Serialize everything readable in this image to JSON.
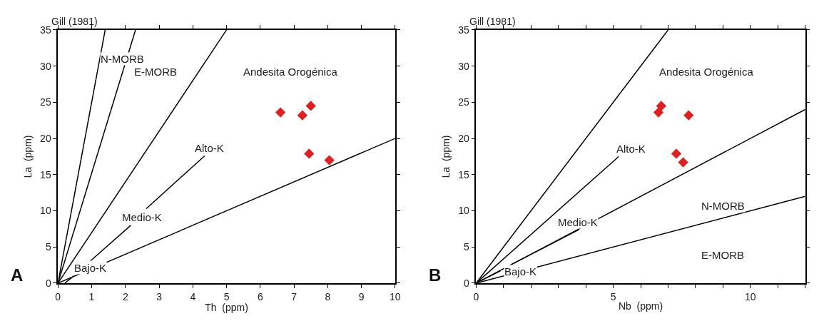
{
  "chart_data": [
    {
      "type": "scatter",
      "xlabel": "Th  (ppm)",
      "ylabel": "La  (ppm)",
      "xlim": [
        0,
        10
      ],
      "ylim": [
        0,
        35
      ],
      "xticks": [
        0,
        1,
        2,
        3,
        4,
        5,
        6,
        7,
        8,
        9,
        10
      ],
      "yticks": [
        0,
        5,
        10,
        15,
        20,
        25,
        30,
        35
      ],
      "annotations": [
        "Gill (1981)",
        "A",
        "N-MORB",
        "E-MORB",
        "Andesita Orogénica",
        "Alto-K",
        "Medio-K",
        "Bajo-K"
      ],
      "series": [
        {
          "type": "line",
          "color": "#000000",
          "x": [
            0,
            1.4
          ],
          "values": [
            0,
            35
          ]
        },
        {
          "type": "line",
          "color": "#000000",
          "x": [
            0,
            2.3
          ],
          "values": [
            0,
            35
          ]
        },
        {
          "type": "line",
          "color": "#000000",
          "x": [
            0,
            5
          ],
          "values": [
            0,
            35
          ]
        },
        {
          "type": "line",
          "color": "#000000",
          "x": [
            0,
            10
          ],
          "values": [
            0,
            20
          ]
        },
        {
          "type": "line",
          "color": "#000000",
          "x": [
            2.62,
            4.35
          ],
          "values": [
            10.3,
            17.6
          ]
        },
        {
          "type": "line",
          "color": "#000000",
          "x": [
            0.97,
            2.16
          ],
          "values": [
            3.1,
            8.0
          ]
        },
        {
          "type": "line",
          "color": "#000000",
          "x": [
            0.2,
            0.47
          ],
          "values": [
            0,
            1.0
          ]
        },
        {
          "color": "#e02020",
          "marker": "diamond",
          "x": [
            6.6,
            7.25,
            7.5,
            7.45,
            8.05
          ],
          "values": [
            23.6,
            23.2,
            24.5,
            17.9,
            17.0
          ]
        }
      ]
    },
    {
      "type": "scatter",
      "xlabel": "Nb  (ppm)",
      "ylabel": "La  (ppm)",
      "xlim": [
        0,
        12
      ],
      "ylim": [
        0,
        35
      ],
      "xticks": [
        0,
        {
          "value": 1,
          "label": null
        },
        {
          "value": 2,
          "label": null
        },
        {
          "value": 3,
          "label": null
        },
        {
          "value": 4,
          "label": null
        },
        5,
        {
          "value": 6,
          "label": null
        },
        {
          "value": 7,
          "label": null
        },
        {
          "value": 8,
          "label": null
        },
        {
          "value": 9,
          "label": null
        },
        10,
        {
          "value": 11,
          "label": null
        },
        {
          "value": 12,
          "label": null
        }
      ],
      "yticks": [
        0,
        5,
        10,
        15,
        20,
        25,
        30,
        35
      ],
      "annotations": [
        "Gill (1981)",
        "B",
        "Andesita Orogénica",
        "Alto-K",
        "Medio-K",
        "Bajo-K",
        "N-MORB",
        "E-MORB"
      ],
      "series": [
        {
          "type": "line",
          "color": "#000000",
          "x": [
            0,
            7
          ],
          "values": [
            0,
            35
          ]
        },
        {
          "type": "line",
          "color": "#000000",
          "x": [
            0,
            12
          ],
          "values": [
            0,
            24
          ]
        },
        {
          "type": "line",
          "color": "#000000",
          "x": [
            0,
            12
          ],
          "values": [
            0,
            12
          ]
        },
        {
          "type": "line",
          "color": "#000000",
          "x": [
            0,
            5.2
          ],
          "values": [
            0,
            17.5
          ]
        },
        {
          "type": "line",
          "color": "#000000",
          "x": [
            1.29,
            3.75
          ],
          "values": [
            2.6,
            7.4
          ]
        },
        {
          "type": "line",
          "color": "#000000",
          "x": [
            0.1,
            0.88
          ],
          "values": [
            0.2,
            1.7
          ]
        },
        {
          "color": "#e02020",
          "marker": "diamond",
          "x": [
            6.65,
            6.75,
            7.75,
            7.3,
            7.55
          ],
          "values": [
            23.6,
            24.5,
            23.2,
            17.9,
            16.7
          ]
        }
      ]
    }
  ]
}
